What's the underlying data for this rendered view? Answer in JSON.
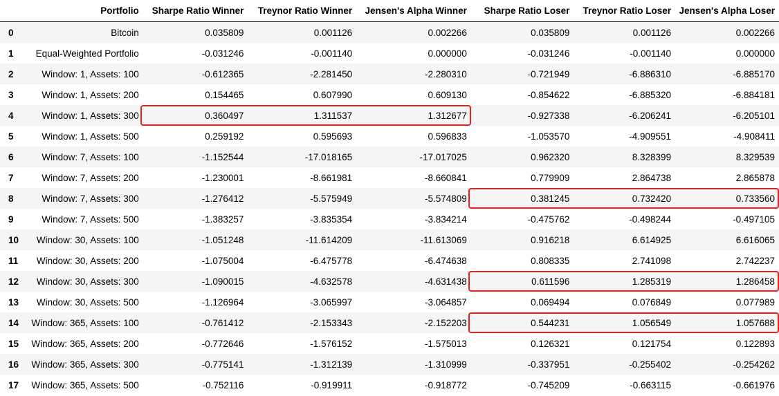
{
  "table": {
    "columns": [
      "",
      "Portfolio",
      "Sharpe Ratio Winner",
      "Treynor Ratio Winner",
      "Jensen's Alpha Winner",
      "Sharpe Ratio Loser",
      "Treynor Ratio Loser",
      "Jensen's Alpha Loser"
    ],
    "rows": [
      [
        "0",
        "Bitcoin",
        "0.035809",
        "0.001126",
        "0.002266",
        "0.035809",
        "0.001126",
        "0.002266"
      ],
      [
        "1",
        "Equal-Weighted Portfolio",
        "-0.031246",
        "-0.001140",
        "0.000000",
        "-0.031246",
        "-0.001140",
        "0.000000"
      ],
      [
        "2",
        "Window: 1, Assets: 100",
        "-0.612365",
        "-2.281450",
        "-2.280310",
        "-0.721949",
        "-6.886310",
        "-6.885170"
      ],
      [
        "3",
        "Window: 1, Assets: 200",
        "0.154465",
        "0.607990",
        "0.609130",
        "-0.854622",
        "-6.885320",
        "-6.884181"
      ],
      [
        "4",
        "Window: 1, Assets: 300",
        "0.360497",
        "1.311537",
        "1.312677",
        "-0.927338",
        "-6.206241",
        "-6.205101"
      ],
      [
        "5",
        "Window: 1, Assets: 500",
        "0.259192",
        "0.595693",
        "0.596833",
        "-1.053570",
        "-4.909551",
        "-4.908411"
      ],
      [
        "6",
        "Window: 7, Assets: 100",
        "-1.152544",
        "-17.018165",
        "-17.017025",
        "0.962320",
        "8.328399",
        "8.329539"
      ],
      [
        "7",
        "Window: 7, Assets: 200",
        "-1.230001",
        "-8.661981",
        "-8.660841",
        "0.779909",
        "2.864738",
        "2.865878"
      ],
      [
        "8",
        "Window: 7, Assets: 300",
        "-1.276412",
        "-5.575949",
        "-5.574809",
        "0.381245",
        "0.732420",
        "0.733560"
      ],
      [
        "9",
        "Window: 7, Assets: 500",
        "-1.383257",
        "-3.835354",
        "-3.834214",
        "-0.475762",
        "-0.498244",
        "-0.497105"
      ],
      [
        "10",
        "Window: 30, Assets: 100",
        "-1.051248",
        "-11.614209",
        "-11.613069",
        "0.916218",
        "6.614925",
        "6.616065"
      ],
      [
        "11",
        "Window: 30, Assets: 200",
        "-1.075004",
        "-6.475778",
        "-6.474638",
        "0.808335",
        "2.741098",
        "2.742237"
      ],
      [
        "12",
        "Window: 30, Assets: 300",
        "-1.090015",
        "-4.632578",
        "-4.631438",
        "0.611596",
        "1.285319",
        "1.286458"
      ],
      [
        "13",
        "Window: 30, Assets: 500",
        "-1.126964",
        "-3.065997",
        "-3.064857",
        "0.069494",
        "0.076849",
        "0.077989"
      ],
      [
        "14",
        "Window: 365, Assets: 100",
        "-0.761412",
        "-2.153343",
        "-2.152203",
        "0.544231",
        "1.056549",
        "1.057688"
      ],
      [
        "15",
        "Window: 365, Assets: 200",
        "-0.772646",
        "-1.576152",
        "-1.575013",
        "0.126321",
        "0.121754",
        "0.122893"
      ],
      [
        "16",
        "Window: 365, Assets: 300",
        "-0.775141",
        "-1.312139",
        "-1.310999",
        "-0.337951",
        "-0.255402",
        "-0.254262"
      ],
      [
        "17",
        "Window: 365, Assets: 500",
        "-0.752116",
        "-0.919911",
        "-0.918772",
        "-0.745209",
        "-0.663115",
        "-0.661976"
      ]
    ]
  },
  "highlights": [
    {
      "row": 4,
      "from_col": 2,
      "to_col": 4
    },
    {
      "row": 8,
      "from_col": 5,
      "to_col": 7
    },
    {
      "row": 12,
      "from_col": 5,
      "to_col": 7
    },
    {
      "row": 14,
      "from_col": 5,
      "to_col": 7
    }
  ],
  "colors": {
    "highlight_border": "#e8211f",
    "row_stripe": "#f5f5f5",
    "header_rule": "#000000"
  }
}
